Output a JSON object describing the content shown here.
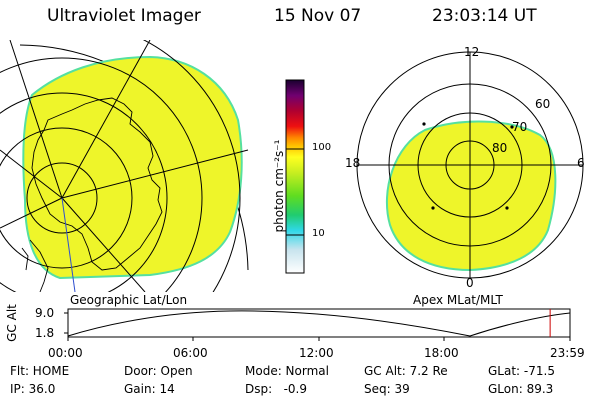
{
  "header": {
    "instrument": "Ultraviolet Imager",
    "date": "15 Nov 07",
    "time": "23:03:14 UT"
  },
  "colorbar": {
    "unit_label": "photon cm⁻²s⁻¹",
    "ticks": [
      "100",
      "10"
    ]
  },
  "geo_panel": {
    "caption": "Geographic Lat/Lon"
  },
  "apex_panel": {
    "caption": "Apex MLat/MLT",
    "mlt_labels": [
      "12",
      "18",
      "6",
      "0"
    ],
    "lat_labels": [
      "60",
      "70",
      "80"
    ]
  },
  "timeline": {
    "axis_label": "GC Alt",
    "y_ticks": [
      "9.0",
      "1.8"
    ],
    "x_ticks": [
      "00:00",
      "06:00",
      "12:00",
      "18:00",
      "23:59"
    ],
    "current_marker_hours": 23.05
  },
  "status": {
    "flt": "Flt: HOME",
    "ip": "IP: 36.0",
    "door": "Door: Open",
    "gain": "Gain: 14",
    "mode": "Mode: Normal",
    "dsp": "Dsp:   -0.9",
    "gc_alt": "GC Alt: 7.2 Re",
    "seq": "Seq: 39",
    "glat": "GLat: -71.5",
    "glon": "GLon: 89.3"
  },
  "colors": {
    "image_fill": "#eef52a",
    "image_edge": "#55e0a0",
    "marker": "#cc0000"
  }
}
